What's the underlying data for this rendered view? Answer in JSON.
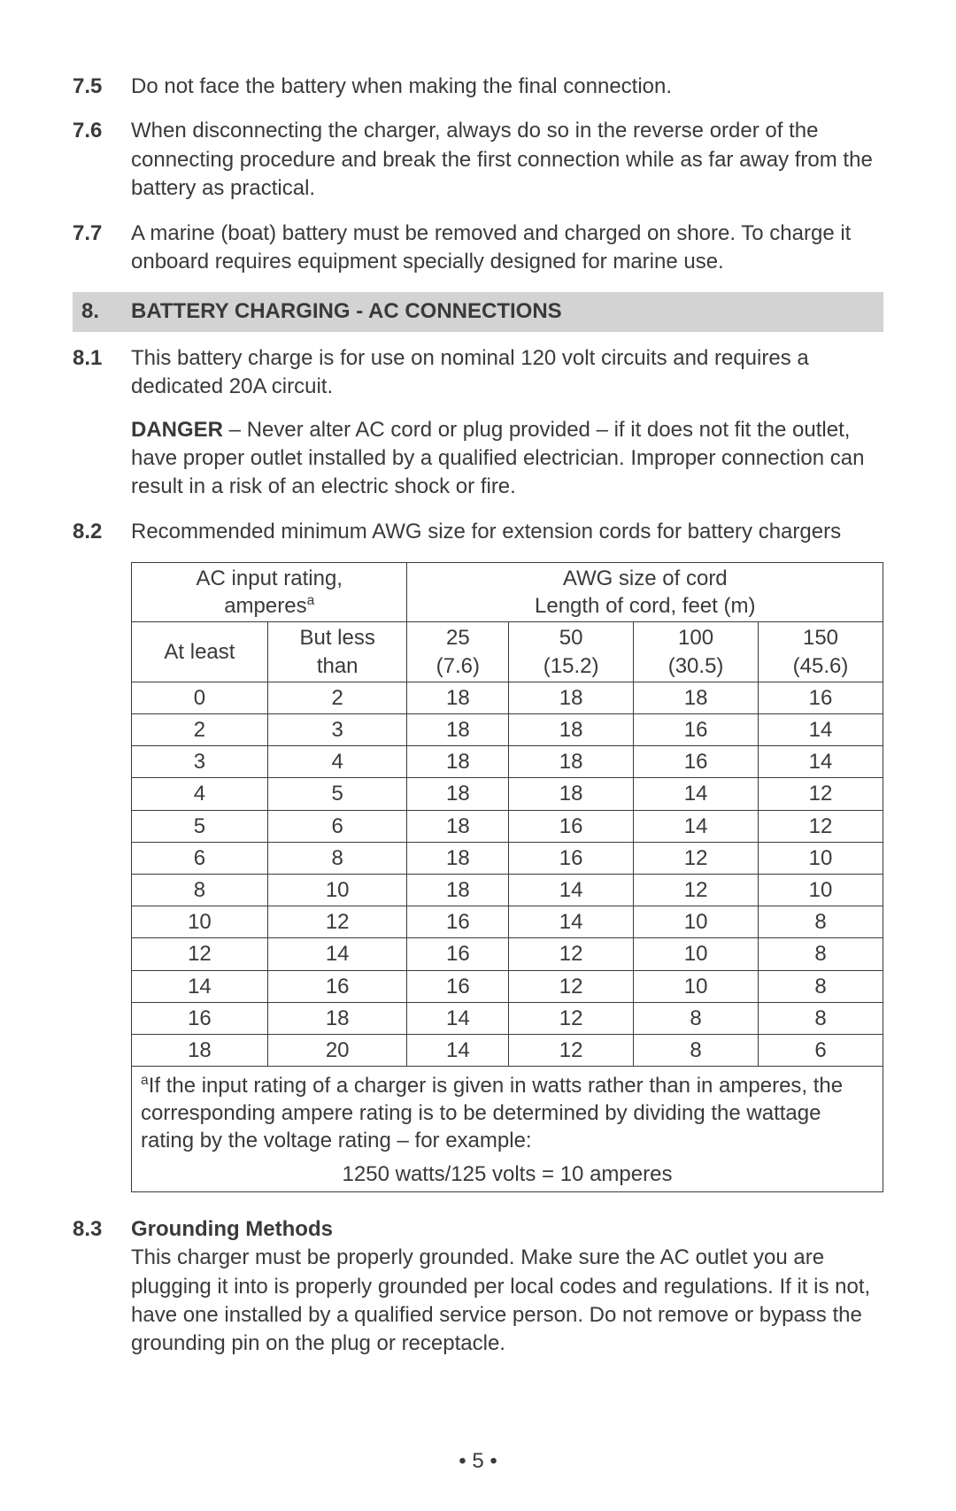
{
  "items_before": [
    {
      "num": "7.5",
      "text": "Do not face the battery when making the final connection."
    },
    {
      "num": "7.6",
      "text": "When disconnecting the charger, always do so in the reverse order of the connecting procedure and break the first connection while as far away from the battery as practical."
    },
    {
      "num": "7.7",
      "text": "A marine (boat) battery must be removed and charged on shore. To charge it onboard requires equipment specially designed for marine use."
    }
  ],
  "section": {
    "num": "8.",
    "title": "BATTERY CHARGING - AC CONNECTIONS"
  },
  "item_8_1": {
    "num": "8.1",
    "text": "This battery charge is for use on nominal 120 volt circuits and requires a dedicated 20A circuit.",
    "danger_label": "DANGER",
    "danger_text": " – Never alter AC cord or plug provided – if it does not fit the outlet, have proper outlet installed by a qualified electrician. Improper connection can result in a risk of an electric shock or fire."
  },
  "item_8_2": {
    "num": "8.2",
    "text": "Recommended minimum AWG size for extension cords for battery chargers"
  },
  "table": {
    "left_header_line1": "AC input rating,",
    "left_header_line2_prefix": "amperes",
    "left_header_line2_sup": "a",
    "right_header_line1": "AWG size of cord",
    "right_header_line2": "Length of cord, feet (m)",
    "col_amp_low": "At least",
    "col_amp_high_l1": "But less",
    "col_amp_high_l2": "than",
    "len_cols": [
      {
        "l1": "25",
        "l2": "(7.6)"
      },
      {
        "l1": "50",
        "l2": "(15.2)"
      },
      {
        "l1": "100",
        "l2": "(30.5)"
      },
      {
        "l1": "150",
        "l2": "(45.6)"
      }
    ],
    "rows": [
      [
        "0",
        "2",
        "18",
        "18",
        "18",
        "16"
      ],
      [
        "2",
        "3",
        "18",
        "18",
        "16",
        "14"
      ],
      [
        "3",
        "4",
        "18",
        "18",
        "16",
        "14"
      ],
      [
        "4",
        "5",
        "18",
        "18",
        "14",
        "12"
      ],
      [
        "5",
        "6",
        "18",
        "16",
        "14",
        "12"
      ],
      [
        "6",
        "8",
        "18",
        "16",
        "12",
        "10"
      ],
      [
        "8",
        "10",
        "18",
        "14",
        "12",
        "10"
      ],
      [
        "10",
        "12",
        "16",
        "14",
        "10",
        "8"
      ],
      [
        "12",
        "14",
        "16",
        "12",
        "10",
        "8"
      ],
      [
        "14",
        "16",
        "16",
        "12",
        "10",
        "8"
      ],
      [
        "16",
        "18",
        "14",
        "12",
        "8",
        "8"
      ],
      [
        "18",
        "20",
        "14",
        "12",
        "8",
        "6"
      ]
    ],
    "footnote_sup": "a",
    "footnote_text": "If the input rating of a charger is given in watts rather than in amperes, the corresponding ampere rating is to be determined by dividing the wattage rating by the voltage rating – for example:",
    "footnote_eq": "1250 watts/125 volts = 10 amperes"
  },
  "item_8_3": {
    "num": "8.3",
    "heading": "Grounding Methods",
    "text": "This charger must be properly grounded. Make sure the AC outlet you are plugging it into is properly grounded per local codes and regulations. If it is not, have one installed by a qualified service person. Do not remove or bypass the grounding pin on the plug or receptacle."
  },
  "page_number": "• 5 •"
}
